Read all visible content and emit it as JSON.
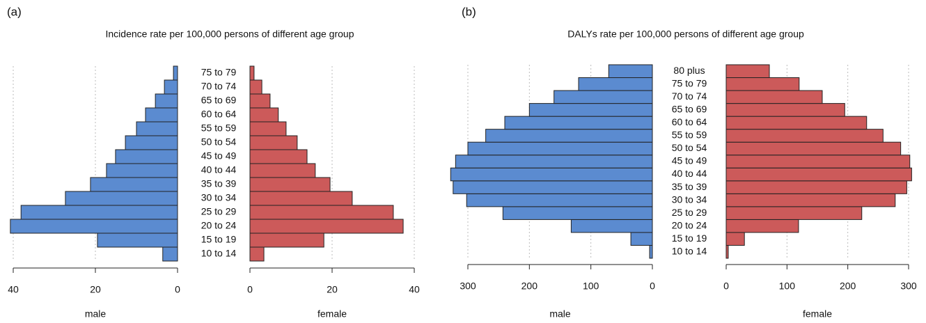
{
  "chart_data": [
    {
      "type": "pyramid",
      "panel_label": "(a)",
      "title": "Incidence rate per 100,000 persons of different age group",
      "categories": [
        "10 to 14",
        "15 to 19",
        "20 to 24",
        "25 to 29",
        "30 to 34",
        "35 to 39",
        "40 to 44",
        "45 to 49",
        "50 to 54",
        "55 to 59",
        "60 to 64",
        "65 to 69",
        "70 to 74",
        "75 to 79"
      ],
      "series": [
        {
          "name": "male",
          "color": "#5b8bd0",
          "values": [
            3.6,
            19.5,
            40.7,
            38.1,
            27.3,
            21.2,
            17.3,
            15.1,
            12.7,
            10.0,
            7.8,
            5.4,
            3.2,
            1.0
          ]
        },
        {
          "name": "female",
          "color": "#cc5a5a",
          "values": [
            3.4,
            18.0,
            37.3,
            34.9,
            24.9,
            19.5,
            15.9,
            13.9,
            11.5,
            8.8,
            6.9,
            4.9,
            2.9,
            1.0
          ]
        }
      ],
      "xlim": [
        0,
        40
      ],
      "xticks": [
        0,
        20,
        40
      ],
      "grid": true
    },
    {
      "type": "pyramid",
      "panel_label": "(b)",
      "title": "DALYs rate per 100,000 persons of different age group",
      "categories": [
        "10 to 14",
        "15 to 19",
        "20 to 24",
        "25 to 29",
        "30 to 34",
        "35 to 39",
        "40 to 44",
        "45 to 49",
        "50 to 54",
        "55 to 59",
        "60 to 64",
        "65 to 69",
        "70 to 74",
        "75 to 79",
        "80 plus"
      ],
      "series": [
        {
          "name": "male",
          "color": "#5b8bd0",
          "values": [
            4.5,
            35,
            132,
            243,
            302,
            324,
            328,
            320,
            300,
            271,
            240,
            200,
            160,
            120,
            71
          ]
        },
        {
          "name": "female",
          "color": "#cc5a5a",
          "values": [
            3.4,
            30,
            119,
            223,
            278,
            297,
            305,
            302,
            287,
            258,
            231,
            195,
            158,
            120,
            71
          ]
        }
      ],
      "xlim": [
        0,
        300
      ],
      "xticks": [
        0,
        100,
        200,
        300
      ],
      "grid": true
    }
  ]
}
